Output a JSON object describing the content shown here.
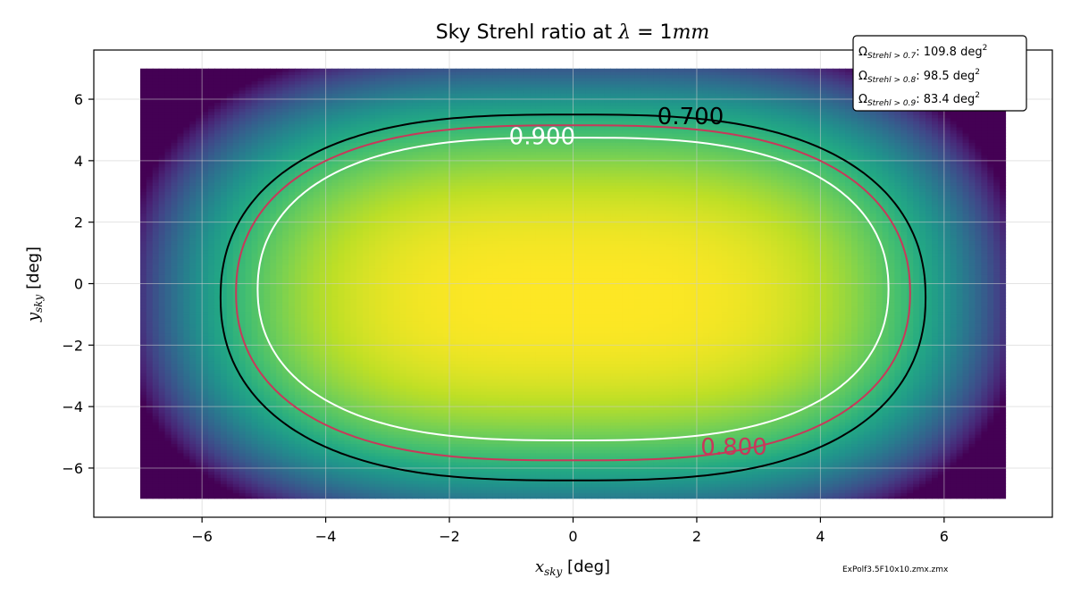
{
  "chart_data": {
    "type": "heatmap",
    "title": "Sky Strehl ratio at λ = 1mm",
    "title_parts": {
      "prefix": "Sky Strehl ratio at ",
      "lambda": "λ",
      "eq": " = 1",
      "unit": "mm"
    },
    "xlabel": {
      "sym": "x",
      "sub": "sky",
      "unit": " [deg]"
    },
    "ylabel": {
      "sym": "y",
      "sub": "sky",
      "unit": " [deg]"
    },
    "xlim": [
      -7.75,
      7.75
    ],
    "ylim": [
      -7.6,
      7.6
    ],
    "x_ticks": [
      -6,
      -4,
      -2,
      0,
      2,
      4,
      6
    ],
    "y_ticks": [
      -6,
      -4,
      -2,
      0,
      2,
      4,
      6
    ],
    "x_tick_labels": [
      "−6",
      "−4",
      "−2",
      "0",
      "2",
      "4",
      "6"
    ],
    "y_tick_labels": [
      "−6",
      "−4",
      "−2",
      "0",
      "2",
      "4",
      "6"
    ],
    "grid": true,
    "colormap": "viridis",
    "data_extent": {
      "x": [
        -7,
        7
      ],
      "y": [
        -7,
        7
      ]
    },
    "contours": [
      {
        "level": "0.700",
        "color": "#000000",
        "x": [
          -5.7,
          5.7
        ],
        "y": [
          -6.4,
          5.5
        ]
      },
      {
        "level": "0.800",
        "color": "#c8385a",
        "x": [
          -5.45,
          5.45
        ],
        "y": [
          -5.75,
          5.15
        ]
      },
      {
        "level": "0.900",
        "color": "#ffffff",
        "x": [
          -5.1,
          5.1
        ],
        "y": [
          -5.1,
          4.75
        ]
      }
    ],
    "contour_labels": [
      {
        "text": "0.700",
        "x": 1.9,
        "y": 5.45,
        "color": "#000000"
      },
      {
        "text": "0.800",
        "x": 2.6,
        "y": -5.3,
        "color": "#c8385a"
      },
      {
        "text": "0.900",
        "x": -0.5,
        "y": 4.8,
        "color": "#ffffff"
      }
    ],
    "legend": {
      "position": "top-right",
      "entries": [
        {
          "omega": "Ω",
          "sub": "Strehl > 0.7",
          "value": ": 109.8 deg",
          "sup": "2"
        },
        {
          "omega": "Ω",
          "sub": "Strehl > 0.8",
          "value": ": 98.5 deg",
          "sup": "2"
        },
        {
          "omega": "Ω",
          "sub": "Strehl > 0.9",
          "value": ": 83.4 deg",
          "sup": "2"
        }
      ]
    },
    "footnote": "ExPolf3.5F10x10.zmx.zmx"
  }
}
